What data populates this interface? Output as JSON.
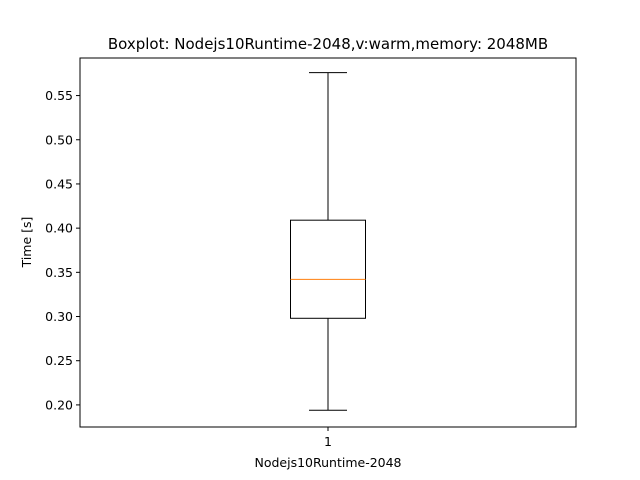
{
  "chart_data": {
    "type": "boxplot",
    "title": "Boxplot: Nodejs10Runtime-2048,v:warm,memory: 2048MB",
    "xlabel": "Nodejs10Runtime-2048",
    "ylabel": "Time [s]",
    "categories": [
      "1"
    ],
    "ylim": [
      0.175,
      0.5925
    ],
    "y_ticks": [
      0.2,
      0.25,
      0.3,
      0.35,
      0.4,
      0.45,
      0.5,
      0.55
    ],
    "y_tick_labels": [
      "0.20",
      "0.25",
      "0.30",
      "0.35",
      "0.40",
      "0.45",
      "0.50",
      "0.55"
    ],
    "boxes": [
      {
        "category": "1",
        "whisker_low": 0.194,
        "q1": 0.298,
        "median": 0.342,
        "q3": 0.409,
        "whisker_high": 0.576
      }
    ],
    "grid": false,
    "colors": {
      "box": "#000000",
      "median": "#ff7f0e",
      "axes": "#000000"
    }
  }
}
